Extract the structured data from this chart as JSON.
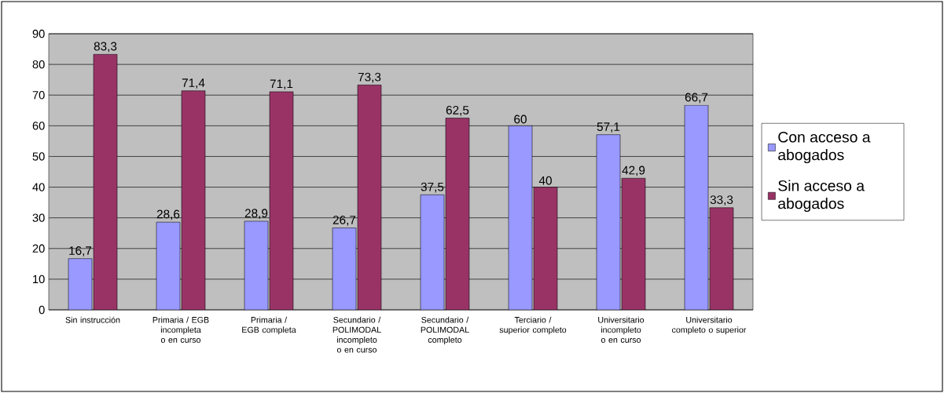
{
  "chart_data": {
    "type": "bar",
    "categories": [
      "Sin instrucción",
      "Primaria / EGB incompleta o en curso",
      "Primaria / EGB completa",
      "Secundario / POLIMODAL incompleto o en curso",
      "Secundario / POLIMODAL completo",
      "Terciario / superior completo",
      "Universitario incompleto o en curso",
      "Universitario completo o superior"
    ],
    "series": [
      {
        "name": "Con acceso a abogados",
        "color": "#9999ff",
        "values": [
          16.7,
          28.6,
          28.9,
          26.7,
          37.5,
          60,
          57.1,
          66.7
        ],
        "value_labels": [
          "16,7",
          "28,6",
          "28,9",
          "26,7",
          "37,5",
          "60",
          "57,1",
          "66,7"
        ]
      },
      {
        "name": "Sin acceso a abogados",
        "color": "#993366",
        "values": [
          83.3,
          71.4,
          71.1,
          73.3,
          62.5,
          40,
          42.9,
          33.3
        ],
        "value_labels": [
          "83,3",
          "71,4",
          "71,1",
          "73,3",
          "62,5",
          "40",
          "42,9",
          "33,3"
        ]
      }
    ],
    "ylim": [
      0,
      90
    ],
    "yticks": [
      0,
      10,
      20,
      30,
      40,
      50,
      60,
      70,
      80,
      90
    ],
    "grid": "y",
    "legend": "right"
  }
}
